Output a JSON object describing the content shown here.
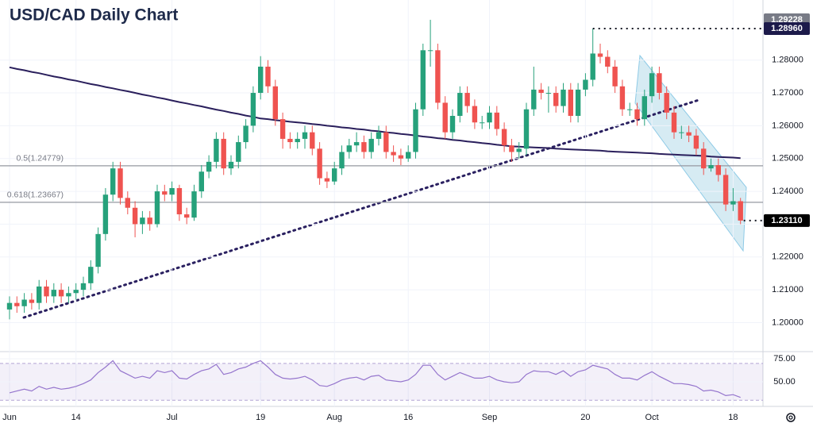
{
  "chart_data": {
    "type": "candlestick",
    "title": "USD/CAD Daily Chart",
    "categories": [
      "Jun",
      null,
      null,
      null,
      null,
      null,
      null,
      null,
      null,
      "14",
      null,
      null,
      null,
      null,
      null,
      null,
      null,
      null,
      null,
      null,
      null,
      null,
      "Jul",
      null,
      null,
      null,
      null,
      null,
      null,
      null,
      null,
      null,
      null,
      null,
      "19",
      null,
      null,
      null,
      null,
      null,
      null,
      null,
      null,
      null,
      "Aug",
      null,
      null,
      null,
      null,
      null,
      null,
      null,
      null,
      null,
      "16",
      null,
      null,
      null,
      null,
      null,
      null,
      null,
      null,
      null,
      null,
      "Sep",
      null,
      null,
      null,
      null,
      null,
      null,
      null,
      null,
      null,
      null,
      null,
      null,
      "20",
      null,
      null,
      null,
      null,
      null,
      null,
      null,
      null,
      "Oct",
      null,
      null,
      null,
      null,
      null,
      null,
      null,
      null,
      null,
      null,
      "18",
      null
    ],
    "ohlc": [
      [
        1.204,
        1.208,
        1.201,
        1.206
      ],
      [
        1.206,
        1.208,
        1.203,
        1.205
      ],
      [
        1.205,
        1.209,
        1.203,
        1.207
      ],
      [
        1.207,
        1.209,
        1.204,
        1.206
      ],
      [
        1.206,
        1.213,
        1.204,
        1.211
      ],
      [
        1.211,
        1.213,
        1.206,
        1.208
      ],
      [
        1.208,
        1.212,
        1.206,
        1.21
      ],
      [
        1.21,
        1.212,
        1.206,
        1.208
      ],
      [
        1.208,
        1.211,
        1.206,
        1.209
      ],
      [
        1.209,
        1.212,
        1.207,
        1.21
      ],
      [
        1.21,
        1.214,
        1.208,
        1.212
      ],
      [
        1.212,
        1.219,
        1.21,
        1.217
      ],
      [
        1.217,
        1.229,
        1.215,
        1.227
      ],
      [
        1.227,
        1.241,
        1.225,
        1.239
      ],
      [
        1.239,
        1.249,
        1.237,
        1.247
      ],
      [
        1.247,
        1.249,
        1.236,
        1.238
      ],
      [
        1.238,
        1.24,
        1.233,
        1.235
      ],
      [
        1.235,
        1.237,
        1.226,
        1.23
      ],
      [
        1.23,
        1.234,
        1.227,
        1.232
      ],
      [
        1.232,
        1.234,
        1.228,
        1.23
      ],
      [
        1.23,
        1.242,
        1.229,
        1.24
      ],
      [
        1.24,
        1.242,
        1.237,
        1.239
      ],
      [
        1.239,
        1.243,
        1.237,
        1.241
      ],
      [
        1.241,
        1.242,
        1.231,
        1.233
      ],
      [
        1.233,
        1.235,
        1.23,
        1.232
      ],
      [
        1.232,
        1.242,
        1.231,
        1.24
      ],
      [
        1.24,
        1.248,
        1.238,
        1.246
      ],
      [
        1.246,
        1.251,
        1.244,
        1.249
      ],
      [
        1.249,
        1.258,
        1.247,
        1.256
      ],
      [
        1.256,
        1.258,
        1.245,
        1.247
      ],
      [
        1.247,
        1.251,
        1.245,
        1.249
      ],
      [
        1.249,
        1.257,
        1.247,
        1.255
      ],
      [
        1.255,
        1.262,
        1.253,
        1.26
      ],
      [
        1.26,
        1.272,
        1.258,
        1.27
      ],
      [
        1.27,
        1.2812,
        1.268,
        1.278
      ],
      [
        1.278,
        1.28,
        1.27,
        1.272
      ],
      [
        1.272,
        1.274,
        1.26,
        1.262
      ],
      [
        1.262,
        1.264,
        1.253,
        1.256
      ],
      [
        1.256,
        1.258,
        1.253,
        1.255
      ],
      [
        1.255,
        1.258,
        1.253,
        1.256
      ],
      [
        1.256,
        1.26,
        1.253,
        1.258
      ],
      [
        1.258,
        1.26,
        1.251,
        1.253
      ],
      [
        1.253,
        1.255,
        1.242,
        1.244
      ],
      [
        1.244,
        1.246,
        1.241,
        1.243
      ],
      [
        1.243,
        1.249,
        1.242,
        1.247
      ],
      [
        1.247,
        1.254,
        1.245,
        1.252
      ],
      [
        1.252,
        1.256,
        1.25,
        1.254
      ],
      [
        1.254,
        1.258,
        1.252,
        1.255
      ],
      [
        1.255,
        1.257,
        1.25,
        1.252
      ],
      [
        1.252,
        1.258,
        1.25,
        1.256
      ],
      [
        1.256,
        1.26,
        1.254,
        1.258
      ],
      [
        1.258,
        1.26,
        1.25,
        1.252
      ],
      [
        1.252,
        1.254,
        1.249,
        1.251
      ],
      [
        1.251,
        1.253,
        1.248,
        1.25
      ],
      [
        1.25,
        1.254,
        1.249,
        1.252
      ],
      [
        1.252,
        1.267,
        1.25,
        1.265
      ],
      [
        1.265,
        1.285,
        1.263,
        1.283
      ],
      [
        1.283,
        1.29228,
        1.278,
        1.283
      ],
      [
        1.283,
        1.285,
        1.265,
        1.267
      ],
      [
        1.267,
        1.269,
        1.256,
        1.258
      ],
      [
        1.258,
        1.265,
        1.256,
        1.263
      ],
      [
        1.263,
        1.272,
        1.261,
        1.27
      ],
      [
        1.27,
        1.272,
        1.264,
        1.266
      ],
      [
        1.266,
        1.268,
        1.259,
        1.261
      ],
      [
        1.261,
        1.263,
        1.259,
        1.261
      ],
      [
        1.261,
        1.266,
        1.259,
        1.264
      ],
      [
        1.264,
        1.266,
        1.257,
        1.259
      ],
      [
        1.259,
        1.261,
        1.252,
        1.254
      ],
      [
        1.254,
        1.256,
        1.249,
        1.252
      ],
      [
        1.252,
        1.255,
        1.25,
        1.253
      ],
      [
        1.253,
        1.267,
        1.251,
        1.265
      ],
      [
        1.265,
        1.278,
        1.263,
        1.271
      ],
      [
        1.271,
        1.273,
        1.268,
        1.27
      ],
      [
        1.27,
        1.272,
        1.264,
        1.27
      ],
      [
        1.27,
        1.272,
        1.264,
        1.266
      ],
      [
        1.266,
        1.273,
        1.264,
        1.271
      ],
      [
        1.271,
        1.273,
        1.261,
        1.263
      ],
      [
        1.263,
        1.273,
        1.261,
        1.271
      ],
      [
        1.271,
        1.276,
        1.269,
        1.274
      ],
      [
        1.274,
        1.2896,
        1.272,
        1.282
      ],
      [
        1.282,
        1.285,
        1.279,
        1.281
      ],
      [
        1.281,
        1.283,
        1.276,
        1.278
      ],
      [
        1.278,
        1.28,
        1.27,
        1.272
      ],
      [
        1.272,
        1.274,
        1.263,
        1.265
      ],
      [
        1.265,
        1.267,
        1.263,
        1.265
      ],
      [
        1.265,
        1.267,
        1.26,
        1.262
      ],
      [
        1.262,
        1.271,
        1.26,
        1.269
      ],
      [
        1.269,
        1.278,
        1.267,
        1.276
      ],
      [
        1.276,
        1.278,
        1.268,
        1.27
      ],
      [
        1.27,
        1.272,
        1.262,
        1.264
      ],
      [
        1.264,
        1.266,
        1.256,
        1.258
      ],
      [
        1.258,
        1.26,
        1.256,
        1.258
      ],
      [
        1.258,
        1.26,
        1.255,
        1.257
      ],
      [
        1.257,
        1.259,
        1.251,
        1.253
      ],
      [
        1.253,
        1.255,
        1.245,
        1.247
      ],
      [
        1.247,
        1.25,
        1.246,
        1.248
      ],
      [
        1.248,
        1.25,
        1.243,
        1.245
      ],
      [
        1.245,
        1.247,
        1.234,
        1.236
      ],
      [
        1.236,
        1.241,
        1.234,
        1.237
      ],
      [
        1.237,
        1.238,
        1.23,
        1.2311
      ]
    ],
    "up_color": "#26a17b",
    "down_color": "#ef5350",
    "ylim": [
      1.19116,
      1.29831
    ],
    "yticks": [
      {
        "value": 1.2,
        "label": "1.20000"
      },
      {
        "value": 1.21,
        "label": "1.21000"
      },
      {
        "value": 1.22,
        "label": "1.22000"
      },
      {
        "value": 1.23,
        "label": "1.23000"
      },
      {
        "value": 1.24,
        "label": "1.24000"
      },
      {
        "value": 1.25,
        "label": "1.25000"
      },
      {
        "value": 1.26,
        "label": "1.26000"
      },
      {
        "value": 1.27,
        "label": "1.27000"
      },
      {
        "value": 1.28,
        "label": "1.28000"
      }
    ],
    "grid": true,
    "ma": {
      "color": "#2a1f5c",
      "values": [
        1.2778,
        1.2773,
        1.2769,
        1.2764,
        1.276,
        1.2755,
        1.275,
        1.2746,
        1.2741,
        1.2737,
        1.2732,
        1.2727,
        1.2723,
        1.2718,
        1.2714,
        1.2709,
        1.2705,
        1.27,
        1.2695,
        1.2691,
        1.2686,
        1.2682,
        1.2677,
        1.2672,
        1.2668,
        1.2663,
        1.2659,
        1.2654,
        1.2649,
        1.2645,
        1.264,
        1.2636,
        1.2631,
        1.2627,
        1.2622,
        1.262,
        1.2617,
        1.2615,
        1.2612,
        1.261,
        1.2608,
        1.2605,
        1.2603,
        1.26,
        1.2598,
        1.2595,
        1.2593,
        1.259,
        1.2588,
        1.2585,
        1.2583,
        1.258,
        1.2578,
        1.2575,
        1.2573,
        1.257,
        1.2567,
        1.2565,
        1.2562,
        1.256,
        1.2557,
        1.2555,
        1.2552,
        1.255,
        1.2547,
        1.2545,
        1.2542,
        1.254,
        1.2537,
        1.2536,
        1.2535,
        1.2534,
        1.2533,
        1.2532,
        1.253,
        1.2529,
        1.2528,
        1.2527,
        1.2526,
        1.2525,
        1.2524,
        1.2522,
        1.2521,
        1.252,
        1.2519,
        1.2518,
        1.2517,
        1.2516,
        1.2514,
        1.2513,
        1.2512,
        1.2511,
        1.251,
        1.2509,
        1.2508,
        1.2506,
        1.2505,
        1.2504,
        1.2503,
        1.2501
      ]
    },
    "levels": [
      {
        "value": 1.24779,
        "label": "0.5(1.24779)"
      },
      {
        "value": 1.23667,
        "label": "0.618(1.23667)"
      }
    ],
    "price_labels": [
      {
        "value": 1.29228,
        "label": "1.29228",
        "color": "#787b86"
      },
      {
        "value": 1.2896,
        "label": "1.28960",
        "color": "#1c1a4a"
      },
      {
        "value": 1.2311,
        "label": "1.23110",
        "color": "#000000"
      }
    ],
    "rsi": {
      "color": "#9575cd",
      "values": [
        38,
        40,
        42,
        40,
        45,
        42,
        44,
        42,
        43,
        45,
        48,
        52,
        60,
        66,
        73,
        62,
        58,
        54,
        56,
        54,
        62,
        60,
        62,
        54,
        53,
        58,
        62,
        64,
        69,
        58,
        60,
        64,
        66,
        70,
        73,
        66,
        58,
        54,
        53,
        54,
        56,
        52,
        46,
        45,
        48,
        52,
        54,
        55,
        52,
        56,
        57,
        52,
        51,
        50,
        52,
        58,
        68,
        68,
        58,
        52,
        56,
        60,
        57,
        54,
        54,
        56,
        52,
        50,
        49,
        50,
        58,
        62,
        61,
        61,
        58,
        62,
        56,
        61,
        63,
        68,
        66,
        64,
        58,
        54,
        54,
        52,
        57,
        61,
        56,
        52,
        48,
        48,
        47,
        45,
        40,
        41,
        39,
        35,
        36,
        33
      ],
      "ylim": [
        25,
        82.8
      ],
      "yticks": [
        {
          "value": 75,
          "label": "75.00"
        },
        {
          "value": 50,
          "label": "50.00"
        }
      ],
      "band": [
        30,
        70
      ]
    }
  }
}
